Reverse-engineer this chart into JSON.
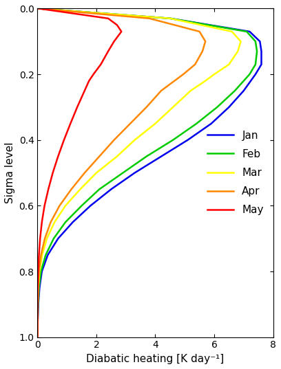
{
  "title": "",
  "xlabel": "Diabatic heating [K day⁻¹]",
  "ylabel": "Sigma level",
  "xlim": [
    0,
    8.0
  ],
  "ylim": [
    0.0,
    1.0
  ],
  "xticks": [
    0,
    2,
    4,
    6,
    8
  ],
  "yticks": [
    0.0,
    0.2,
    0.4,
    0.6,
    0.8,
    1.0
  ],
  "series": [
    {
      "label": "Jan",
      "color": "#0000ee",
      "sigma": [
        0.0,
        0.03,
        0.07,
        0.1,
        0.13,
        0.17,
        0.2,
        0.25,
        0.3,
        0.35,
        0.4,
        0.45,
        0.5,
        0.55,
        0.6,
        0.65,
        0.7,
        0.75,
        0.8,
        0.85,
        0.9,
        0.95,
        1.0
      ],
      "heating": [
        0.05,
        4.5,
        7.2,
        7.55,
        7.6,
        7.6,
        7.4,
        7.0,
        6.5,
        5.9,
        5.1,
        4.2,
        3.3,
        2.5,
        1.8,
        1.2,
        0.7,
        0.35,
        0.15,
        0.07,
        0.03,
        0.01,
        0.0
      ]
    },
    {
      "label": "Feb",
      "color": "#00cc00",
      "sigma": [
        0.0,
        0.03,
        0.07,
        0.1,
        0.13,
        0.17,
        0.2,
        0.25,
        0.3,
        0.35,
        0.4,
        0.45,
        0.5,
        0.55,
        0.6,
        0.65,
        0.7,
        0.75,
        0.8,
        0.85,
        0.9,
        0.95,
        1.0
      ],
      "heating": [
        0.05,
        4.5,
        7.1,
        7.4,
        7.45,
        7.4,
        7.2,
        6.7,
        6.1,
        5.4,
        4.6,
        3.7,
        2.9,
        2.1,
        1.5,
        0.95,
        0.55,
        0.28,
        0.12,
        0.05,
        0.02,
        0.01,
        0.0
      ]
    },
    {
      "label": "Mar",
      "color": "#ffff00",
      "sigma": [
        0.0,
        0.03,
        0.07,
        0.1,
        0.13,
        0.17,
        0.2,
        0.22,
        0.25,
        0.3,
        0.35,
        0.4,
        0.45,
        0.5,
        0.55,
        0.6,
        0.65,
        0.7,
        0.75,
        0.8,
        0.85,
        0.9,
        0.95,
        1.0
      ],
      "heating": [
        0.05,
        4.5,
        6.6,
        6.9,
        6.8,
        6.5,
        6.0,
        5.7,
        5.2,
        4.6,
        4.0,
        3.3,
        2.7,
        2.0,
        1.45,
        0.95,
        0.58,
        0.32,
        0.16,
        0.07,
        0.03,
        0.01,
        0.005,
        0.0
      ]
    },
    {
      "label": "Apr",
      "color": "#ff8800",
      "sigma": [
        0.0,
        0.03,
        0.07,
        0.1,
        0.13,
        0.17,
        0.2,
        0.22,
        0.25,
        0.3,
        0.35,
        0.4,
        0.45,
        0.5,
        0.55,
        0.6,
        0.65,
        0.7,
        0.75,
        0.8,
        0.85,
        0.9,
        0.95,
        1.0
      ],
      "heating": [
        0.05,
        3.8,
        5.5,
        5.7,
        5.6,
        5.35,
        4.95,
        4.65,
        4.2,
        3.7,
        3.15,
        2.6,
        2.1,
        1.6,
        1.15,
        0.75,
        0.45,
        0.25,
        0.12,
        0.05,
        0.02,
        0.01,
        0.005,
        0.0
      ]
    },
    {
      "label": "May",
      "color": "#ff0000",
      "sigma": [
        0.0,
        0.03,
        0.05,
        0.07,
        0.1,
        0.13,
        0.17,
        0.2,
        0.22,
        0.25,
        0.3,
        0.35,
        0.4,
        0.45,
        0.5,
        0.55,
        0.6,
        0.65,
        0.7,
        0.75,
        0.8,
        0.85,
        0.9,
        0.95,
        1.0
      ],
      "heating": [
        0.05,
        2.4,
        2.7,
        2.85,
        2.6,
        2.4,
        2.15,
        1.9,
        1.75,
        1.6,
        1.35,
        1.12,
        0.9,
        0.7,
        0.52,
        0.37,
        0.24,
        0.15,
        0.09,
        0.05,
        0.025,
        0.01,
        0.005,
        0.002,
        0.0
      ]
    }
  ],
  "legend_loc": "center right",
  "linewidth": 1.8,
  "background_color": "#ffffff",
  "tick_fontsize": 10,
  "label_fontsize": 11,
  "legend_fontsize": 11
}
